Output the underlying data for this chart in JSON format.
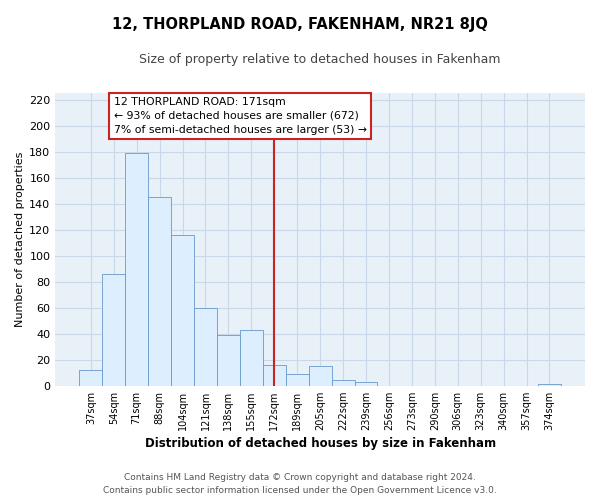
{
  "title": "12, THORPLAND ROAD, FAKENHAM, NR21 8JQ",
  "subtitle": "Size of property relative to detached houses in Fakenham",
  "xlabel": "Distribution of detached houses by size in Fakenham",
  "ylabel": "Number of detached properties",
  "bar_labels": [
    "37sqm",
    "54sqm",
    "71sqm",
    "88sqm",
    "104sqm",
    "121sqm",
    "138sqm",
    "155sqm",
    "172sqm",
    "189sqm",
    "205sqm",
    "222sqm",
    "239sqm",
    "256sqm",
    "273sqm",
    "290sqm",
    "306sqm",
    "323sqm",
    "340sqm",
    "357sqm",
    "374sqm"
  ],
  "bar_values": [
    12,
    86,
    179,
    145,
    116,
    60,
    39,
    43,
    16,
    9,
    15,
    4,
    3,
    0,
    0,
    0,
    0,
    0,
    0,
    0,
    1
  ],
  "bar_color": "#ddeeff",
  "bar_edge_color": "#6699cc",
  "highlight_index": 8,
  "highlight_line_color": "#cc2222",
  "highlight_label": "12 THORPLAND ROAD: 171sqm",
  "annotation_line1": "← 93% of detached houses are smaller (672)",
  "annotation_line2": "7% of semi-detached houses are larger (53) →",
  "box_facecolor": "#ffffff",
  "box_edgecolor": "#cc2222",
  "ylim": [
    0,
    225
  ],
  "yticks": [
    0,
    20,
    40,
    60,
    80,
    100,
    120,
    140,
    160,
    180,
    200,
    220
  ],
  "fig_bg_color": "#ffffff",
  "plot_bg_color": "#e8f0f8",
  "grid_color": "#c8d8e8",
  "footer_line1": "Contains HM Land Registry data © Crown copyright and database right 2024.",
  "footer_line2": "Contains public sector information licensed under the Open Government Licence v3.0."
}
